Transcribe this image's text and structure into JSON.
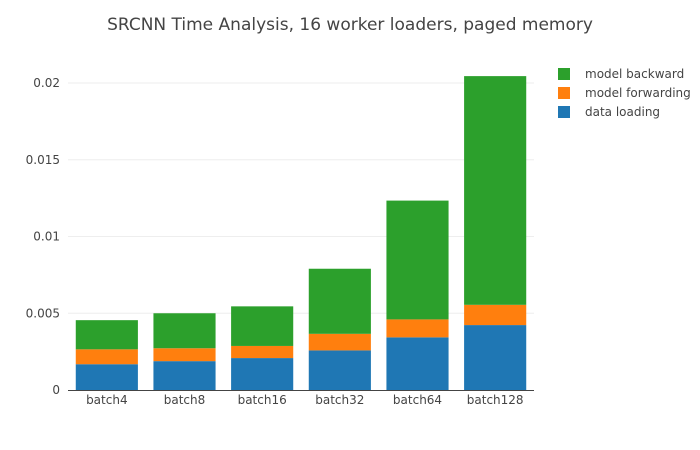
{
  "chart_data": {
    "type": "bar",
    "stacked": true,
    "title": "SRCNN Time Analysis, 16 worker loaders, paged memory",
    "categories": [
      "batch4",
      "batch8",
      "batch16",
      "batch32",
      "batch64",
      "batch128"
    ],
    "series": [
      {
        "name": "data loading",
        "color": "#1f77b4",
        "values": [
          0.00168,
          0.00188,
          0.00208,
          0.00258,
          0.00343,
          0.00423
        ]
      },
      {
        "name": "model forwarding",
        "color": "#ff7f0e",
        "values": [
          0.00097,
          0.00084,
          0.00079,
          0.00108,
          0.00117,
          0.00132
        ]
      },
      {
        "name": "model backward",
        "color": "#2ca02c",
        "values": [
          0.0019,
          0.00228,
          0.00258,
          0.00424,
          0.00774,
          0.0149
        ]
      }
    ],
    "legend_order": [
      "model backward",
      "model forwarding",
      "data loading"
    ],
    "ylim": [
      0,
      0.0215
    ],
    "yticks": [
      0,
      0.005,
      0.01,
      0.015,
      0.02
    ],
    "ytick_labels": [
      "0",
      "0.005",
      "0.01",
      "0.015",
      "0.02"
    ],
    "grid": true,
    "legend_position": "top-right"
  }
}
